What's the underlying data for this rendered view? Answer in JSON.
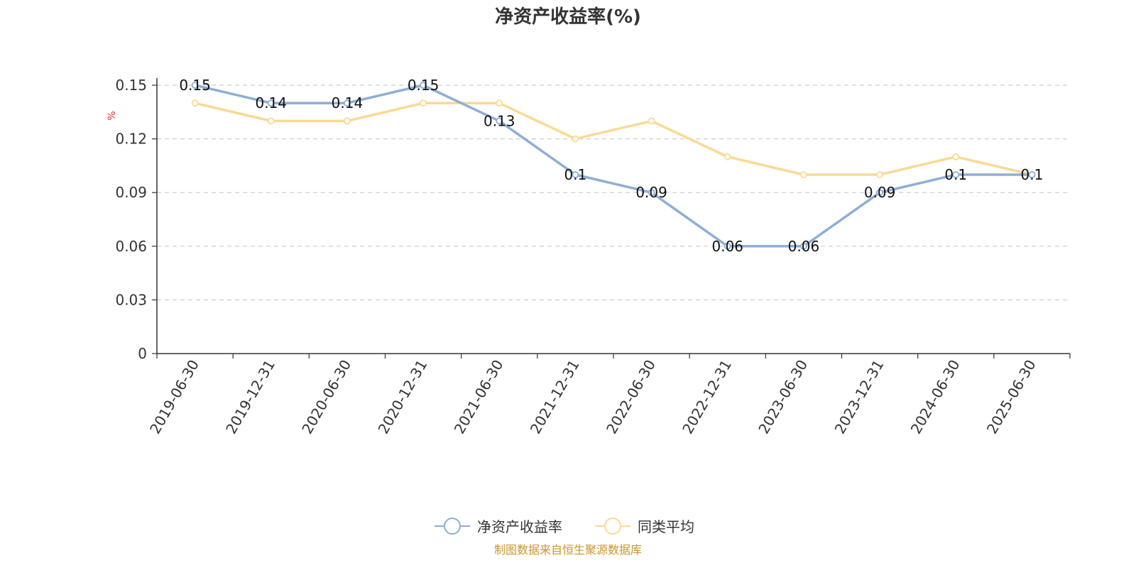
{
  "chart_data": {
    "type": "line",
    "title": "净资产收益率(%)",
    "ylabel": "%",
    "ylim": [
      0,
      0.15
    ],
    "yticks": [
      "0",
      "0.03",
      "0.06",
      "0.09",
      "0.12",
      "0.15"
    ],
    "grid": true,
    "legend_position": "bottom",
    "categories": [
      "2019-06-30",
      "2019-12-31",
      "2020-06-30",
      "2020-12-31",
      "2021-06-30",
      "2021-12-31",
      "2022-06-30",
      "2022-12-31",
      "2023-06-30",
      "2023-12-31",
      "2024-06-30",
      "2025-06-30"
    ],
    "series": [
      {
        "name": "净资产收益率",
        "color": "#8eaed6",
        "values": [
          0.15,
          0.14,
          0.14,
          0.15,
          0.13,
          0.1,
          0.09,
          0.06,
          0.06,
          0.09,
          0.1,
          0.1
        ],
        "data_labels": [
          "0.15",
          "0.14",
          "0.14",
          "0.15",
          "0.13",
          "0.1",
          "0.09",
          "0.06",
          "0.06",
          "0.09",
          "0.1",
          "0.1"
        ]
      },
      {
        "name": "同类平均",
        "color": "#fbd994",
        "values": [
          0.14,
          0.13,
          0.13,
          0.14,
          0.14,
          0.12,
          0.13,
          0.11,
          0.1,
          0.1,
          0.11,
          0.1
        ]
      }
    ],
    "source": "制图数据来自恒生聚源数据库"
  }
}
